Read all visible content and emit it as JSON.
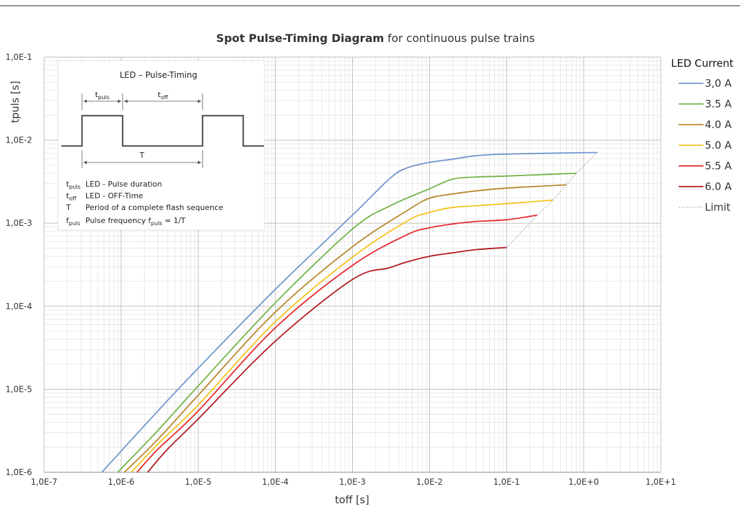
{
  "chart_data": {
    "type": "line",
    "title_bold": "Spot Pulse-Timing Diagram",
    "title_rest": "for continuous pulse trains",
    "xlabel": "toff [s]",
    "ylabel": "tpuls [s]",
    "xscale": "log",
    "yscale": "log",
    "xlim": [
      1e-07,
      10
    ],
    "ylim": [
      1e-06,
      0.1
    ],
    "x_ticks": [
      "1,0E-7",
      "1,0E-6",
      "1,0E-5",
      "1,0E-4",
      "1,0E-3",
      "1,0E-2",
      "1,0E-1",
      "1,0E+0",
      "1,0E+1"
    ],
    "y_ticks": [
      "1,0E-6",
      "1,0E-5",
      "1,0E-4",
      "1,0E-3",
      "1,0E-2",
      "1,0E-1"
    ],
    "grid": true,
    "legend_title": "LED Current",
    "legend_position": "right",
    "series": [
      {
        "name": "3,0 A",
        "color": "#6f94cf",
        "points": [
          [
            5.6e-07,
            1e-06
          ],
          [
            3e-06,
            5.5e-06
          ],
          [
            1e-05,
            1.8e-05
          ],
          [
            0.0001,
            0.00016
          ],
          [
            0.001,
            0.00125
          ],
          [
            0.003,
            0.0034
          ],
          [
            0.005,
            0.0046
          ],
          [
            0.01,
            0.0054
          ],
          [
            0.02,
            0.0059
          ],
          [
            0.04,
            0.0065
          ],
          [
            0.1,
            0.0068
          ],
          [
            1.5,
            0.0071
          ]
        ]
      },
      {
        "name": "3.5 A",
        "color": "#72b346",
        "points": [
          [
            9e-07,
            1e-06
          ],
          [
            3e-06,
            3.2e-06
          ],
          [
            1e-05,
            1.1e-05
          ],
          [
            0.0001,
            0.00011
          ],
          [
            0.001,
            0.00085
          ],
          [
            0.003,
            0.0016
          ],
          [
            0.01,
            0.0026
          ],
          [
            0.02,
            0.0034
          ],
          [
            0.04,
            0.0036
          ],
          [
            0.1,
            0.0037
          ],
          [
            0.8,
            0.004
          ]
        ]
      },
      {
        "name": "4.0 A",
        "color": "#b8862a",
        "points": [
          [
            1.1e-06,
            1e-06
          ],
          [
            3e-06,
            2.5e-06
          ],
          [
            1e-05,
            8.5e-06
          ],
          [
            0.0001,
            8.5e-05
          ],
          [
            0.001,
            0.00052
          ],
          [
            0.005,
            0.0014
          ],
          [
            0.01,
            0.002
          ],
          [
            0.02,
            0.00225
          ],
          [
            0.04,
            0.00245
          ],
          [
            0.1,
            0.00265
          ],
          [
            0.6,
            0.0029
          ]
        ]
      },
      {
        "name": "5.0 A",
        "color": "#f4c21b",
        "points": [
          [
            1.35e-06,
            1e-06
          ],
          [
            3e-06,
            2.2e-06
          ],
          [
            1e-05,
            6.5e-06
          ],
          [
            0.0001,
            6.5e-05
          ],
          [
            0.001,
            0.00039
          ],
          [
            0.005,
            0.00105
          ],
          [
            0.01,
            0.00135
          ],
          [
            0.02,
            0.00155
          ],
          [
            0.04,
            0.00162
          ],
          [
            0.1,
            0.00172
          ],
          [
            0.4,
            0.0019
          ]
        ]
      },
      {
        "name": "5.5 A",
        "color": "#e8252a",
        "points": [
          [
            1.6e-06,
            1e-06
          ],
          [
            3e-06,
            1.9e-06
          ],
          [
            1e-05,
            5.5e-06
          ],
          [
            0.0001,
            5.5e-05
          ],
          [
            0.001,
            0.00031
          ],
          [
            0.005,
            0.00072
          ],
          [
            0.01,
            0.00088
          ],
          [
            0.02,
            0.00098
          ],
          [
            0.04,
            0.00105
          ],
          [
            0.1,
            0.0011
          ],
          [
            0.25,
            0.00125
          ]
        ]
      },
      {
        "name": "6.0 A",
        "color": "#b3161c",
        "points": [
          [
            2.2e-06,
            1e-06
          ],
          [
            4e-06,
            1.9e-06
          ],
          [
            1e-05,
            4.4e-06
          ],
          [
            0.0001,
            3.8e-05
          ],
          [
            0.001,
            0.00021
          ],
          [
            0.003,
            0.00029
          ],
          [
            0.005,
            0.00034
          ],
          [
            0.01,
            0.0004
          ],
          [
            0.02,
            0.00044
          ],
          [
            0.04,
            0.00048
          ],
          [
            0.1,
            0.00051
          ]
        ]
      },
      {
        "name": "Limit",
        "color": "#a6a6a6",
        "dashed": true,
        "points": [
          [
            0.1,
            0.00051
          ],
          [
            0.25,
            0.00125
          ],
          [
            0.4,
            0.0019
          ],
          [
            0.6,
            0.0029
          ],
          [
            0.8,
            0.004
          ],
          [
            1.5,
            0.0071
          ]
        ]
      }
    ]
  },
  "inset": {
    "title": "LED – Pulse-Timing",
    "t_letter": "t",
    "puls_sub": "puls",
    "off_sub": "off",
    "period_label": "T",
    "legend": [
      {
        "sym": "t",
        "sub": "puls",
        "text": "LED - Pulse duration"
      },
      {
        "sym": "t",
        "sub": "off",
        "text": "LED - OFF-Time"
      },
      {
        "sym": "T",
        "sub": "",
        "text": "Period of a complete flash sequence"
      },
      {
        "sym": "f",
        "sub": "puls",
        "text": "Pulse frequency  f"
      }
    ],
    "freq_sub": "puls",
    "freq_tail": " = 1/T"
  }
}
